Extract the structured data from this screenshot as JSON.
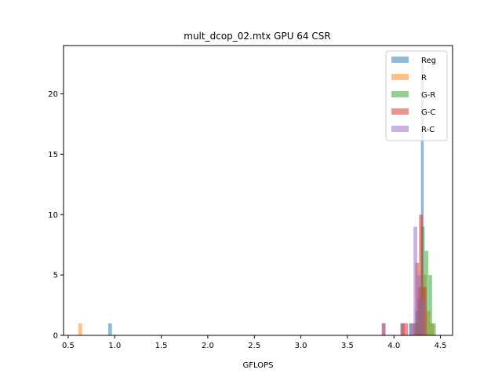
{
  "chart_data": {
    "type": "histogram",
    "title": "mult_dcop_02.mtx GPU 64 CSR",
    "xlabel": "GFLOPS",
    "ylabel": "",
    "xlim": [
      0.45,
      4.63
    ],
    "ylim": [
      0,
      24
    ],
    "x_ticks": [
      "0.5",
      "1.0",
      "1.5",
      "2.0",
      "2.5",
      "3.0",
      "3.5",
      "4.0",
      "4.5"
    ],
    "x_tick_values": [
      0.5,
      1.0,
      1.5,
      2.0,
      2.5,
      3.0,
      3.5,
      4.0,
      4.5
    ],
    "y_ticks": [
      "0",
      "5",
      "10",
      "15",
      "20"
    ],
    "y_tick_values": [
      0,
      5,
      10,
      15,
      20
    ],
    "legend_position": "top-right",
    "series": [
      {
        "name": "Reg",
        "color": "#1f77b4",
        "bins": [
          {
            "x0": 0.93,
            "x1": 0.97,
            "count": 1
          },
          {
            "x0": 4.16,
            "x1": 4.19,
            "count": 1
          },
          {
            "x0": 4.23,
            "x1": 4.26,
            "count": 2
          },
          {
            "x0": 4.26,
            "x1": 4.29,
            "count": 4
          },
          {
            "x0": 4.29,
            "x1": 4.32,
            "count": 23
          }
        ]
      },
      {
        "name": "R",
        "color": "#ff7f0e",
        "bins": [
          {
            "x0": 0.61,
            "x1": 0.65,
            "count": 1
          },
          {
            "x0": 4.08,
            "x1": 4.12,
            "count": 1
          },
          {
            "x0": 4.23,
            "x1": 4.27,
            "count": 1
          },
          {
            "x0": 4.27,
            "x1": 4.31,
            "count": 4
          },
          {
            "x0": 4.31,
            "x1": 4.35,
            "count": 5
          },
          {
            "x0": 4.35,
            "x1": 4.39,
            "count": 2
          },
          {
            "x0": 4.39,
            "x1": 4.43,
            "count": 1
          }
        ]
      },
      {
        "name": "G-R",
        "color": "#2ca02c",
        "bins": [
          {
            "x0": 4.21,
            "x1": 4.25,
            "count": 1
          },
          {
            "x0": 4.25,
            "x1": 4.29,
            "count": 3
          },
          {
            "x0": 4.29,
            "x1": 4.33,
            "count": 9
          },
          {
            "x0": 4.33,
            "x1": 4.37,
            "count": 7
          },
          {
            "x0": 4.37,
            "x1": 4.41,
            "count": 5
          },
          {
            "x0": 4.41,
            "x1": 4.45,
            "count": 1
          }
        ]
      },
      {
        "name": "G-C",
        "color": "#d62728",
        "bins": [
          {
            "x0": 3.87,
            "x1": 3.91,
            "count": 1
          },
          {
            "x0": 4.07,
            "x1": 4.11,
            "count": 1
          },
          {
            "x0": 4.11,
            "x1": 4.15,
            "count": 1
          },
          {
            "x0": 4.19,
            "x1": 4.23,
            "count": 1
          },
          {
            "x0": 4.23,
            "x1": 4.27,
            "count": 6
          },
          {
            "x0": 4.27,
            "x1": 4.31,
            "count": 10
          },
          {
            "x0": 4.31,
            "x1": 4.35,
            "count": 4
          }
        ]
      },
      {
        "name": "R-C",
        "color": "#9467bd",
        "bins": [
          {
            "x0": 3.87,
            "x1": 3.91,
            "count": 1
          },
          {
            "x0": 4.07,
            "x1": 4.11,
            "count": 1
          },
          {
            "x0": 4.17,
            "x1": 4.21,
            "count": 1
          },
          {
            "x0": 4.21,
            "x1": 4.25,
            "count": 9
          },
          {
            "x0": 4.25,
            "x1": 4.29,
            "count": 5
          },
          {
            "x0": 4.29,
            "x1": 4.33,
            "count": 3
          }
        ]
      }
    ]
  }
}
